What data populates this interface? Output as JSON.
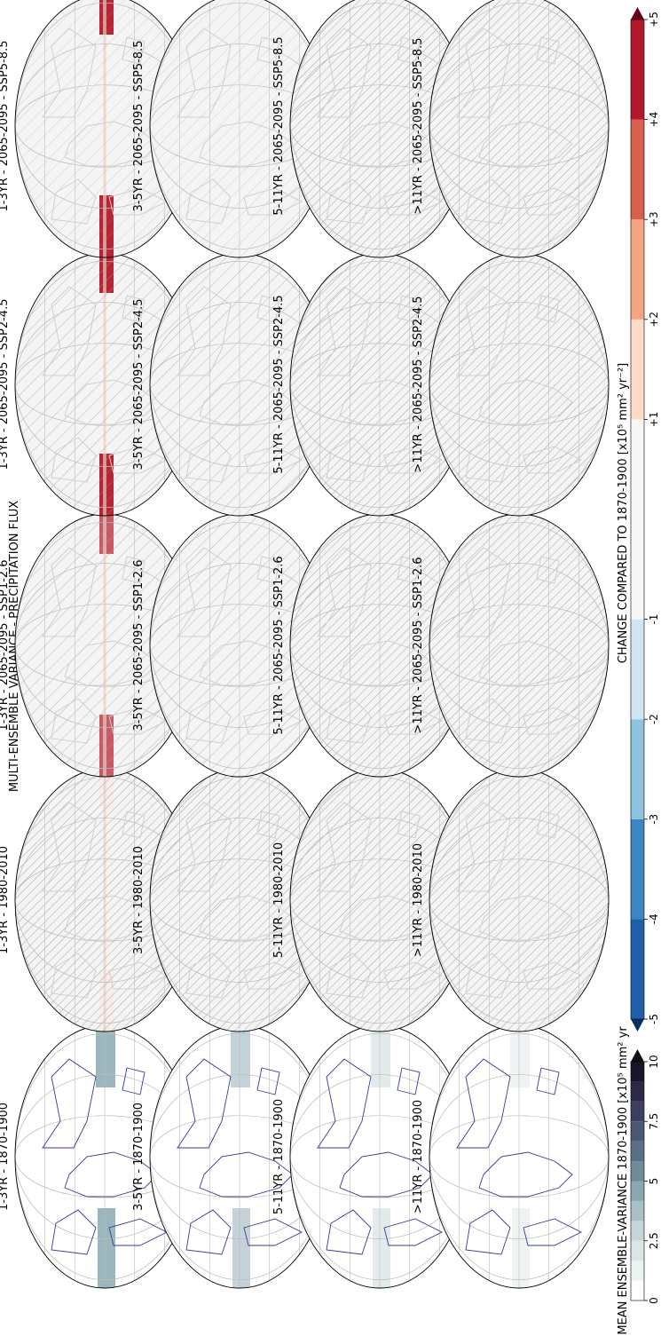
{
  "title": "MULTI-ENSEMBLE VARIANCE - PRECIPITATION FLUX",
  "columns": [
    {
      "key": "baseline",
      "panels": [
        "1-3YR - 1870-1900",
        "3-5YR - 1870-1900",
        "5-11YR - 1870-1900",
        ">11YR - 1870-1900"
      ]
    },
    {
      "key": "historical",
      "panels": [
        "1-3YR - 1980-2010",
        "3-5YR - 1980-2010",
        "5-11YR - 1980-2010",
        ">11YR - 1980-2010"
      ]
    },
    {
      "key": "ssp126",
      "panels": [
        "1-3YR - 2065-2095 - SSP1-2.6",
        "3-5YR - 2065-2095 - SSP1-2.6",
        "5-11YR - 2065-2095 - SSP1-2.6",
        ">11YR - 2065-2095 - SSP1-2.6"
      ]
    },
    {
      "key": "ssp245",
      "panels": [
        "1-3YR - 2065-2095 - SSP2-4.5",
        "3-5YR - 2065-2095 - SSP2-4.5",
        "5-11YR - 2065-2095 - SSP2-4.5",
        ">11YR - 2065-2095 - SSP2-4.5"
      ]
    },
    {
      "key": "ssp585",
      "panels": [
        "1-3YR - 2065-2095 - SSP5-8.5",
        "3-5YR - 2065-2095 - SSP5-8.5",
        "5-11YR - 2065-2095 - SSP5-8.5",
        ">11YR - 2065-2095 - SSP5-8.5"
      ]
    }
  ],
  "colorbar_mean": {
    "label": "MEAN ENSEMBLE-VARIANCE 1870-1900 [x10⁵ mm² yr",
    "ticks": [
      "0",
      "2.5",
      "5",
      "7.5",
      "10"
    ],
    "colors": [
      "#ffffff",
      "#edf2f2",
      "#dbe6e6",
      "#c6d6d8",
      "#a9c1c5",
      "#8aa8b0",
      "#6e8c98",
      "#5a7185",
      "#4b5874",
      "#3c3f60",
      "#2c2947",
      "#1a1628"
    ]
  },
  "colorbar_change": {
    "label": "CHANGE COMPARED TO 1870-1900 [x10⁵ mm² yr⁻²]",
    "ticks": [
      "-5",
      "-4",
      "-3",
      "-2",
      "-1",
      "+1",
      "+2",
      "+3",
      "+4",
      "+5"
    ],
    "colors": [
      "#1f5fa8",
      "#3e86c1",
      "#8fc2dd",
      "#d1e5f0",
      "#f7f7f7",
      "#f7f7f7",
      "#fddbc7",
      "#f4a582",
      "#d6604d",
      "#b2182b"
    ],
    "under_color": "#053061",
    "over_color": "#67001f"
  },
  "map_colors": {
    "coast": "#3b3893",
    "gray_coast": "#cfcfcf",
    "hatch": "#7a7a7a",
    "tropical_red": "#b2182b",
    "tropical_teal": "#7a9ea6"
  }
}
